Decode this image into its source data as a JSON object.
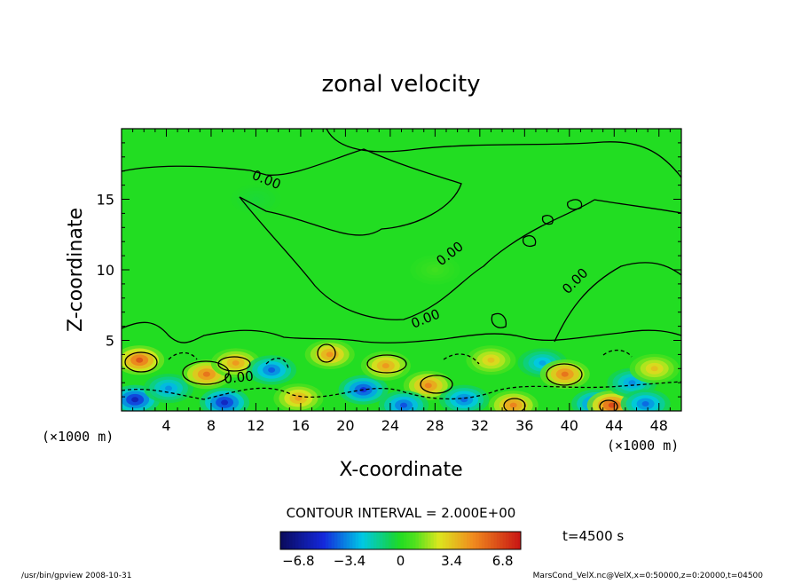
{
  "chart_data": {
    "type": "heatmap",
    "title": "zonal velocity",
    "xlabel": "X-coordinate",
    "ylabel": "Z-coordinate",
    "x_unit": "(×1000 m)",
    "y_unit": "(×1000 m)",
    "xlim": [
      0,
      50
    ],
    "ylim": [
      0,
      20
    ],
    "x_ticks": [
      4,
      8,
      12,
      16,
      20,
      24,
      28,
      32,
      36,
      40,
      44,
      48
    ],
    "y_ticks": [
      5,
      10,
      15
    ],
    "contour_interval_text": "CONTOUR INTERVAL = 2.000E+00",
    "contour_labels": [
      "0.00",
      "0.00",
      "0.00",
      "0.00",
      "0.00"
    ],
    "time_label": "t=4500 s",
    "colorbar": {
      "min": -8,
      "max": 8,
      "tick_values": [
        -6.8,
        -3.4,
        0,
        3.4,
        6.8
      ],
      "tick_labels": [
        "−6.8",
        "−3.4",
        "0",
        "3.4",
        "6.8"
      ]
    },
    "blobs": [
      {
        "x": 1.6,
        "z": 3.6,
        "v": 6.4
      },
      {
        "x": 1.2,
        "z": 0.8,
        "v": -6.0
      },
      {
        "x": 4.2,
        "z": 1.6,
        "v": -3.5
      },
      {
        "x": 7.6,
        "z": 2.6,
        "v": 5.6
      },
      {
        "x": 10.2,
        "z": 3.4,
        "v": 4.6
      },
      {
        "x": 9.2,
        "z": 0.6,
        "v": -5.8
      },
      {
        "x": 13.4,
        "z": 2.9,
        "v": -4.4
      },
      {
        "x": 15.8,
        "z": 0.9,
        "v": 4.4
      },
      {
        "x": 18.6,
        "z": 4.0,
        "v": 4.8
      },
      {
        "x": 21.6,
        "z": 1.5,
        "v": -5.2
      },
      {
        "x": 23.6,
        "z": 3.2,
        "v": 4.6
      },
      {
        "x": 27.4,
        "z": 1.8,
        "v": 5.2
      },
      {
        "x": 25.2,
        "z": 0.4,
        "v": -4.6
      },
      {
        "x": 30.6,
        "z": 0.8,
        "v": -4.2
      },
      {
        "x": 33.0,
        "z": 3.6,
        "v": 3.6
      },
      {
        "x": 35.0,
        "z": 0.4,
        "v": 5.2
      },
      {
        "x": 37.6,
        "z": 3.4,
        "v": -3.2
      },
      {
        "x": 39.6,
        "z": 2.6,
        "v": 5.6
      },
      {
        "x": 42.4,
        "z": 0.5,
        "v": -5.0
      },
      {
        "x": 43.8,
        "z": 0.4,
        "v": 6.8
      },
      {
        "x": 45.6,
        "z": 2.0,
        "v": -3.6
      },
      {
        "x": 47.6,
        "z": 3.0,
        "v": 3.6
      },
      {
        "x": 46.8,
        "z": 0.5,
        "v": -4.2
      },
      {
        "x": 28.0,
        "z": 10.0,
        "v": 0.6
      },
      {
        "x": 12.0,
        "z": 15.0,
        "v": -0.3
      }
    ]
  },
  "footer": {
    "left": "/usr/bin/gpview    2008-10-31",
    "right": "MarsCond_VelX.nc@VelX,x=0:50000,z=0:20000,t=04500"
  }
}
